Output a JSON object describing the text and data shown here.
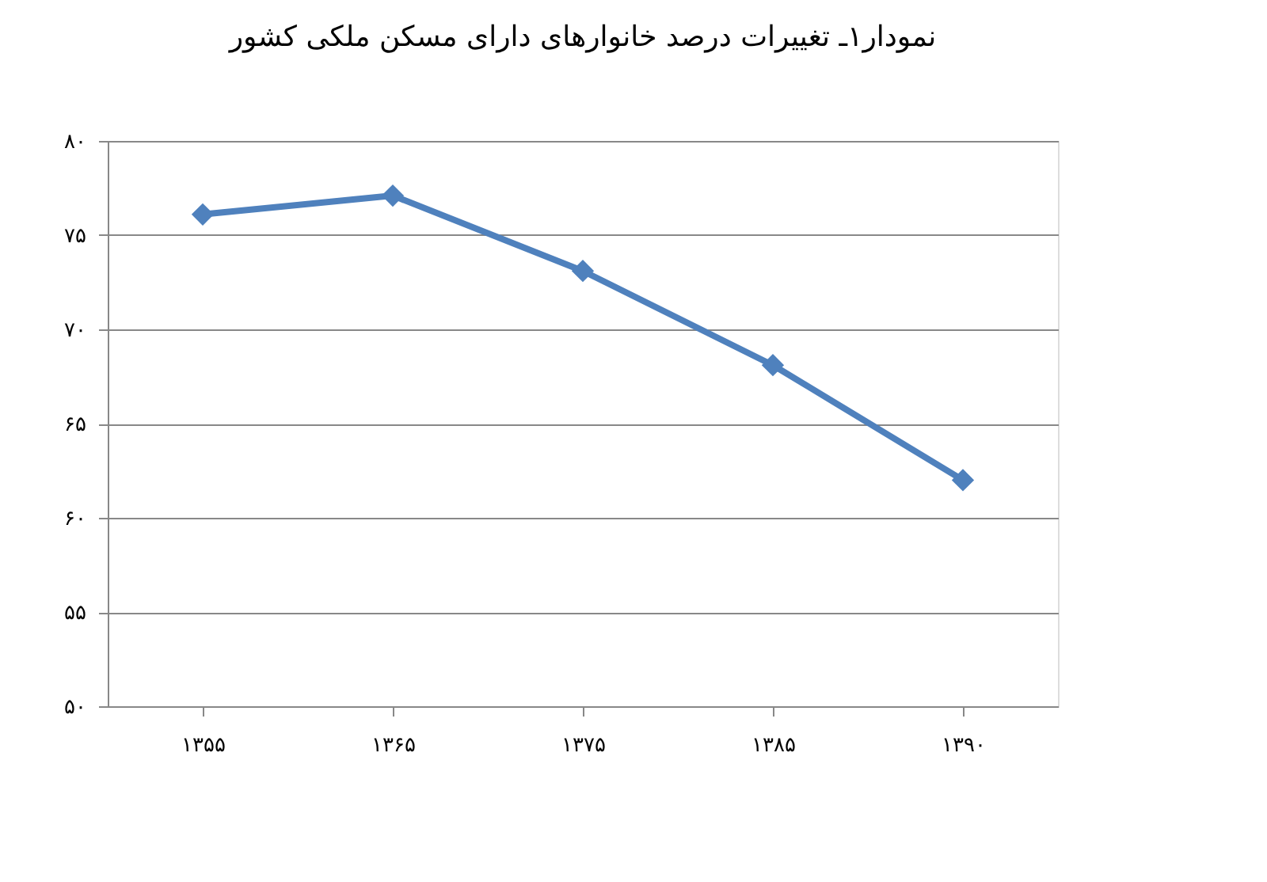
{
  "chart_data": {
    "type": "line",
    "title": "نمودار۱ـ تغییرات درصد خانوارهای دارای مسکن ملکی کشور",
    "categories": [
      "۱۳۵۵",
      "۱۳۶۵",
      "۱۳۷۵",
      "۱۳۸۵",
      "۱۳۹۰"
    ],
    "series": [
      {
        "color": "#4f81bd",
        "values": [
          76.1,
          77.1,
          73.1,
          68.1,
          62.0
        ]
      }
    ],
    "ylim": [
      50,
      80
    ],
    "yticks": [
      {
        "value": 50,
        "label": "۵۰"
      },
      {
        "value": 55,
        "label": "۵۵"
      },
      {
        "value": 60,
        "label": "۶۰"
      },
      {
        "value": 65,
        "label": "۶۵"
      },
      {
        "value": 70,
        "label": "۷۰"
      },
      {
        "value": 75,
        "label": "۷۵"
      },
      {
        "value": 80,
        "label": "۸۰"
      }
    ],
    "grid": "y",
    "marker": "diamond",
    "line_style": "solid"
  }
}
